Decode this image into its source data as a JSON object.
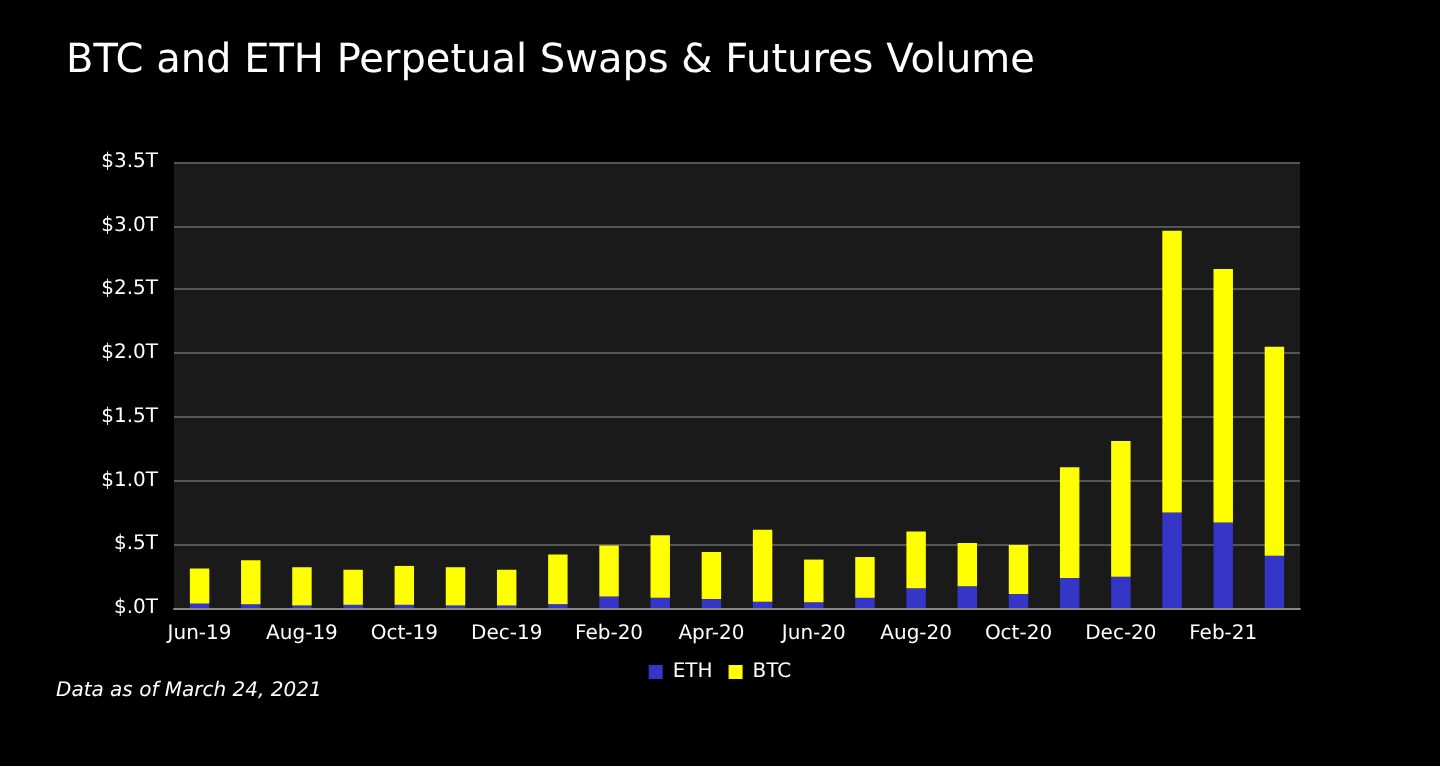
{
  "chart_data": {
    "type": "bar",
    "title": "BTC and ETH Perpetual Swaps & Futures Volume",
    "categories": [
      "Jun-19",
      null,
      "Aug-19",
      null,
      "Oct-19",
      null,
      "Dec-19",
      null,
      "Feb-20",
      null,
      "Apr-20",
      null,
      "Jun-20",
      null,
      "Aug-20",
      null,
      "Oct-20",
      null,
      "Dec-20",
      null,
      "Feb-21",
      null
    ],
    "series": [
      {
        "name": "ETH",
        "color": "#3535c8",
        "values": [
          0.035,
          0.03,
          0.02,
          0.025,
          0.025,
          0.02,
          0.02,
          0.03,
          0.09,
          0.08,
          0.07,
          0.05,
          0.045,
          0.08,
          0.155,
          0.17,
          0.11,
          0.235,
          0.245,
          0.75,
          0.67,
          0.41
        ]
      },
      {
        "name": "BTC",
        "color": "#ffff00",
        "values": [
          0.275,
          0.345,
          0.3,
          0.275,
          0.305,
          0.3,
          0.28,
          0.39,
          0.4,
          0.49,
          0.37,
          0.565,
          0.335,
          0.32,
          0.445,
          0.34,
          0.385,
          0.87,
          1.065,
          2.21,
          1.99,
          1.64
        ]
      }
    ],
    "stacked": true,
    "ylim": [
      0,
      3.5
    ],
    "yticks": [
      {
        "value": 0,
        "label": "$.0T"
      },
      {
        "value": 0.5,
        "label": "$.5T"
      },
      {
        "value": 1,
        "label": "$1.0T"
      },
      {
        "value": 1.5,
        "label": "$1.5T"
      },
      {
        "value": 2,
        "label": "$2.0T"
      },
      {
        "value": 2.5,
        "label": "$2.5T"
      },
      {
        "value": 3,
        "label": "$3.0T"
      },
      {
        "value": 3.5,
        "label": "$3.5T"
      }
    ],
    "grid": "y",
    "legend": "bottom",
    "annotations": [
      "Data as of March 24, 2021"
    ]
  }
}
